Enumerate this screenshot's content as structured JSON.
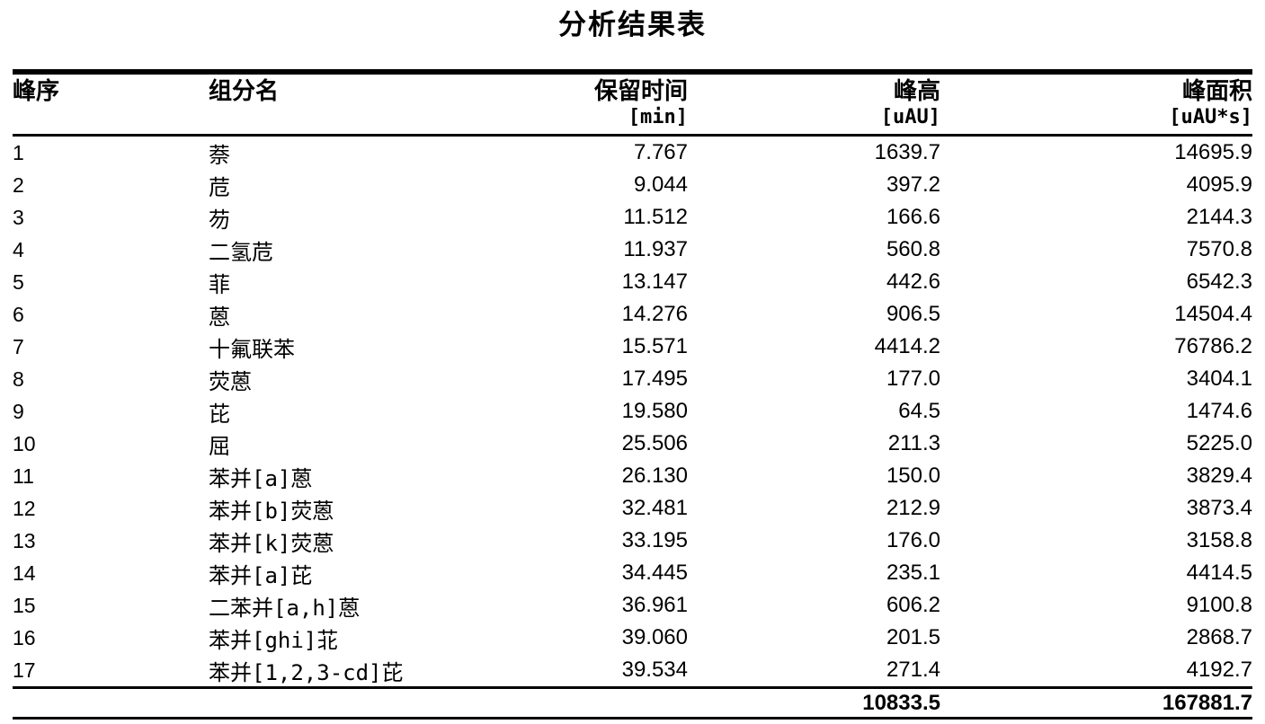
{
  "title": "分析结果表",
  "table": {
    "columns": [
      {
        "label": "峰序",
        "unit": ""
      },
      {
        "label": "组分名",
        "unit": ""
      },
      {
        "label": "保留时间",
        "unit": "[min]"
      },
      {
        "label": "峰高",
        "unit": "[uAU]"
      },
      {
        "label": "峰面积",
        "unit": "[uAU*s]"
      }
    ],
    "rows": [
      {
        "no": "1",
        "name": "萘",
        "rt": "7.767",
        "height": "1639.7",
        "area": "14695.9"
      },
      {
        "no": "2",
        "name": "苊",
        "rt": "9.044",
        "height": "397.2",
        "area": "4095.9"
      },
      {
        "no": "3",
        "name": "芴",
        "rt": "11.512",
        "height": "166.6",
        "area": "2144.3"
      },
      {
        "no": "4",
        "name": "二氢苊",
        "rt": "11.937",
        "height": "560.8",
        "area": "7570.8"
      },
      {
        "no": "5",
        "name": "菲",
        "rt": "13.147",
        "height": "442.6",
        "area": "6542.3"
      },
      {
        "no": "6",
        "name": "蒽",
        "rt": "14.276",
        "height": "906.5",
        "area": "14504.4"
      },
      {
        "no": "7",
        "name": "十氟联苯",
        "rt": "15.571",
        "height": "4414.2",
        "area": "76786.2"
      },
      {
        "no": "8",
        "name": "荧蒽",
        "rt": "17.495",
        "height": "177.0",
        "area": "3404.1"
      },
      {
        "no": "9",
        "name": "芘",
        "rt": "19.580",
        "height": "64.5",
        "area": "1474.6"
      },
      {
        "no": "10",
        "name": "屈",
        "rt": "25.506",
        "height": "211.3",
        "area": "5225.0"
      },
      {
        "no": "11",
        "name": "苯并[a]蒽",
        "rt": "26.130",
        "height": "150.0",
        "area": "3829.4"
      },
      {
        "no": "12",
        "name": "苯并[b]荧蒽",
        "rt": "32.481",
        "height": "212.9",
        "area": "3873.4"
      },
      {
        "no": "13",
        "name": "苯并[k]荧蒽",
        "rt": "33.195",
        "height": "176.0",
        "area": "3158.8"
      },
      {
        "no": "14",
        "name": "苯并[a]芘",
        "rt": "34.445",
        "height": "235.1",
        "area": "4414.5"
      },
      {
        "no": "15",
        "name": "二苯并[a,h]蒽",
        "rt": "36.961",
        "height": "606.2",
        "area": "9100.8"
      },
      {
        "no": "16",
        "name": "苯并[ghi]苝",
        "rt": "39.060",
        "height": "201.5",
        "area": "2868.7"
      },
      {
        "no": "17",
        "name": "苯并[1,2,3-cd]芘",
        "rt": "39.534",
        "height": "271.4",
        "area": "4192.7"
      }
    ],
    "totals": {
      "height": "10833.5",
      "area": "167881.7"
    }
  },
  "colors": {
    "background": "#ffffff",
    "text": "#000000",
    "rule": "#000000"
  }
}
